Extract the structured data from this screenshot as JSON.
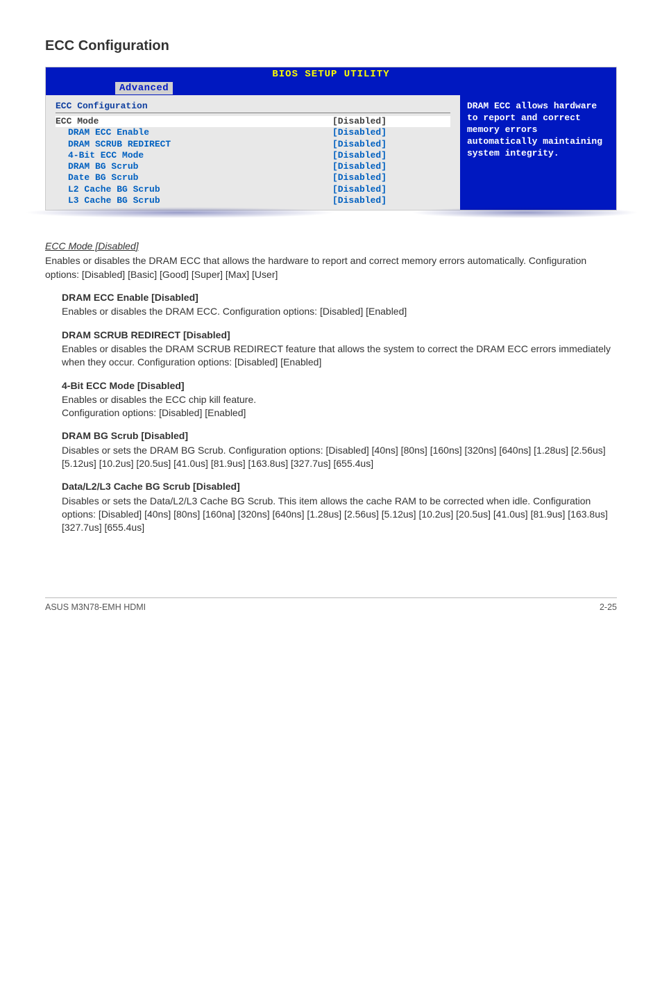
{
  "heading": "ECC Configuration",
  "bios": {
    "title": "BIOS SETUP UTILITY",
    "tab": "Advanced",
    "panel_title": "ECC Configuration",
    "rows": [
      {
        "label": "ECC Mode",
        "value": "[Disabled]",
        "indent": false,
        "selected": true
      },
      {
        "label": "DRAM ECC Enable",
        "value": "[Disabled]",
        "indent": true,
        "selected": false
      },
      {
        "label": "DRAM SCRUB REDIRECT",
        "value": "[Disabled]",
        "indent": true,
        "selected": false
      },
      {
        "label": "4-Bit ECC Mode",
        "value": "[Disabled]",
        "indent": true,
        "selected": false
      },
      {
        "label": "DRAM BG Scrub",
        "value": "[Disabled]",
        "indent": true,
        "selected": false
      },
      {
        "label": "Date BG Scrub",
        "value": "[Disabled]",
        "indent": true,
        "selected": false
      },
      {
        "label": "L2 Cache BG Scrub",
        "value": "[Disabled]",
        "indent": true,
        "selected": false
      },
      {
        "label": "L3 Cache BG Scrub",
        "value": "[Disabled]",
        "indent": true,
        "selected": false
      }
    ],
    "help": "DRAM ECC allows hardware to report and correct memory errors automatically maintaining system integrity."
  },
  "section1": {
    "title": "ECC Mode [Disabled]",
    "text": "Enables or disables the DRAM ECC that allows the hardware to report and correct memory errors automatically. Configuration options: [Disabled] [Basic] [Good] [Super] [Max] [User]"
  },
  "blocks": [
    {
      "title": "DRAM ECC Enable [Disabled]",
      "text": "Enables or disables the DRAM ECC. Configuration options: [Disabled] [Enabled]"
    },
    {
      "title": "DRAM SCRUB REDIRECT [Disabled]",
      "text": "Enables or disables the DRAM SCRUB REDIRECT feature that allows the system to correct the DRAM ECC errors immediately when they occur. Configuration options: [Disabled] [Enabled]"
    },
    {
      "title": "4-Bit ECC Mode [Disabled]",
      "text": "Enables or disables the ECC chip kill feature.\nConfiguration options: [Disabled] [Enabled]"
    },
    {
      "title": "DRAM BG Scrub [Disabled]",
      "text": "Disables or sets the DRAM BG Scrub. Configuration options: [Disabled] [40ns] [80ns] [160ns] [320ns] [640ns] [1.28us] [2.56us] [5.12us] [10.2us] [20.5us] [41.0us] [81.9us] [163.8us] [327.7us] [655.4us]"
    },
    {
      "title": "Data/L2/L3 Cache BG Scrub [Disabled]",
      "text": "Disables or sets the Data/L2/L3 Cache BG Scrub. This item allows the cache RAM to be corrected when idle. Configuration options: [Disabled] [40ns] [80ns] [160na] [320ns] [640ns] [1.28us] [2.56us] [5.12us] [10.2us] [20.5us] [41.0us] [81.9us] [163.8us] [327.7us] [655.4us]"
    }
  ],
  "footer": {
    "left": "ASUS M3N78-EMH HDMI",
    "right": "2-25"
  }
}
